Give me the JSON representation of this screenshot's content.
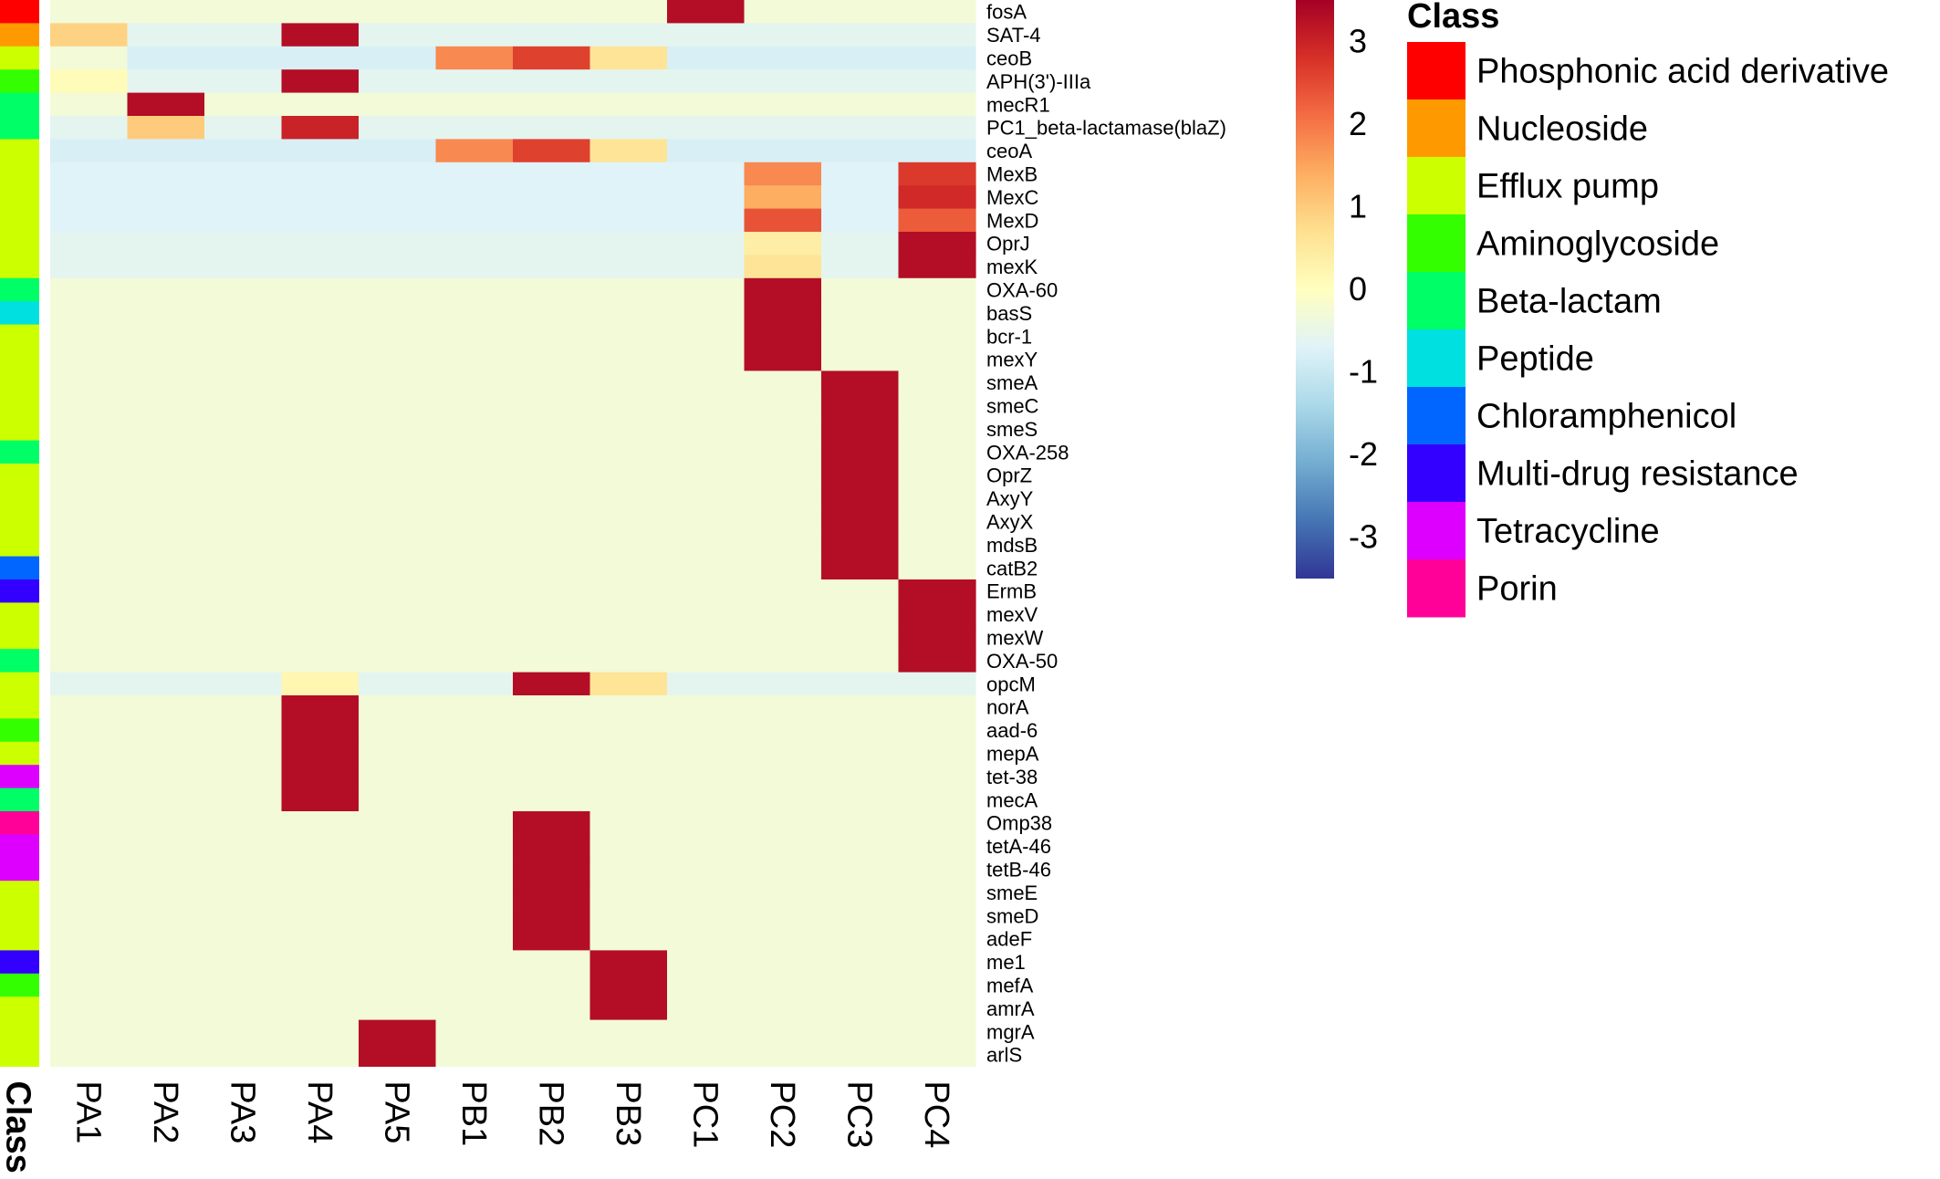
{
  "chart_data": {
    "type": "heatmap",
    "columns": [
      "PA1",
      "PA2",
      "PA3",
      "PA4",
      "PA5",
      "PB1",
      "PB2",
      "PB3",
      "PC1",
      "PC2",
      "PC3",
      "PC4"
    ],
    "annotation_label": "Class",
    "rows": [
      {
        "gene": "fosA",
        "class": "Phosphonic acid derivative",
        "values": [
          -0.3,
          -0.3,
          -0.3,
          -0.3,
          -0.3,
          -0.3,
          -0.3,
          -0.3,
          3.3,
          -0.3,
          -0.3,
          -0.3
        ]
      },
      {
        "gene": "SAT-4",
        "class": "Nucleoside",
        "values": [
          0.9,
          -0.6,
          -0.6,
          3.3,
          -0.6,
          -0.6,
          -0.6,
          -0.6,
          -0.6,
          -0.6,
          -0.6,
          -0.6
        ]
      },
      {
        "gene": "ceoB",
        "class": "Efflux pump",
        "values": [
          -0.3,
          -0.8,
          -0.8,
          -0.8,
          -0.8,
          1.8,
          2.6,
          0.6,
          -0.8,
          -0.8,
          -0.8,
          -0.8
        ]
      },
      {
        "gene": "APH(3')-IIIa",
        "class": "Aminoglycoside",
        "values": [
          0.1,
          -0.6,
          -0.6,
          3.3,
          -0.6,
          -0.6,
          -0.6,
          -0.6,
          -0.6,
          -0.6,
          -0.6,
          -0.6
        ]
      },
      {
        "gene": "mecR1",
        "class": "Beta-lactam",
        "values": [
          -0.3,
          3.3,
          -0.3,
          -0.3,
          -0.3,
          -0.3,
          -0.3,
          -0.3,
          -0.3,
          -0.3,
          -0.3,
          -0.3
        ]
      },
      {
        "gene": "PC1_beta-lactamase(blaZ)",
        "class": "Beta-lactam",
        "values": [
          -0.6,
          1.0,
          -0.6,
          3.0,
          -0.6,
          -0.6,
          -0.6,
          -0.6,
          -0.6,
          -0.6,
          -0.6,
          -0.6
        ]
      },
      {
        "gene": "ceoA",
        "class": "Efflux pump",
        "values": [
          -0.8,
          -0.8,
          -0.8,
          -0.8,
          -0.8,
          1.8,
          2.6,
          0.6,
          -0.8,
          -0.8,
          -0.8,
          -0.8
        ]
      },
      {
        "gene": "MexB",
        "class": "Efflux pump",
        "values": [
          -0.7,
          -0.7,
          -0.7,
          -0.7,
          -0.7,
          -0.7,
          -0.7,
          -0.7,
          -0.7,
          1.8,
          -0.7,
          2.7
        ]
      },
      {
        "gene": "MexC",
        "class": "Efflux pump",
        "values": [
          -0.7,
          -0.7,
          -0.7,
          -0.7,
          -0.7,
          -0.7,
          -0.7,
          -0.7,
          -0.7,
          1.4,
          -0.7,
          2.9
        ]
      },
      {
        "gene": "MexD",
        "class": "Efflux pump",
        "values": [
          -0.7,
          -0.7,
          -0.7,
          -0.7,
          -0.7,
          -0.7,
          -0.7,
          -0.7,
          -0.7,
          2.4,
          -0.7,
          2.3
        ]
      },
      {
        "gene": "OprJ",
        "class": "Efflux pump",
        "values": [
          -0.6,
          -0.6,
          -0.6,
          -0.6,
          -0.6,
          -0.6,
          -0.6,
          -0.6,
          -0.6,
          0.4,
          -0.6,
          3.3
        ]
      },
      {
        "gene": "mexK",
        "class": "Efflux pump",
        "values": [
          -0.6,
          -0.6,
          -0.6,
          -0.6,
          -0.6,
          -0.6,
          -0.6,
          -0.6,
          -0.6,
          0.6,
          -0.6,
          3.3
        ]
      },
      {
        "gene": "OXA-60",
        "class": "Beta-lactam",
        "values": [
          -0.3,
          -0.3,
          -0.3,
          -0.3,
          -0.3,
          -0.3,
          -0.3,
          -0.3,
          -0.3,
          3.3,
          -0.3,
          -0.3
        ]
      },
      {
        "gene": "basS",
        "class": "Peptide",
        "values": [
          -0.3,
          -0.3,
          -0.3,
          -0.3,
          -0.3,
          -0.3,
          -0.3,
          -0.3,
          -0.3,
          3.3,
          -0.3,
          -0.3
        ]
      },
      {
        "gene": "bcr-1",
        "class": "Efflux pump",
        "values": [
          -0.3,
          -0.3,
          -0.3,
          -0.3,
          -0.3,
          -0.3,
          -0.3,
          -0.3,
          -0.3,
          3.3,
          -0.3,
          -0.3
        ]
      },
      {
        "gene": "mexY",
        "class": "Efflux pump",
        "values": [
          -0.3,
          -0.3,
          -0.3,
          -0.3,
          -0.3,
          -0.3,
          -0.3,
          -0.3,
          -0.3,
          3.3,
          -0.3,
          -0.3
        ]
      },
      {
        "gene": "smeA",
        "class": "Efflux pump",
        "values": [
          -0.3,
          -0.3,
          -0.3,
          -0.3,
          -0.3,
          -0.3,
          -0.3,
          -0.3,
          -0.3,
          -0.3,
          3.3,
          -0.3
        ]
      },
      {
        "gene": "smeC",
        "class": "Efflux pump",
        "values": [
          -0.3,
          -0.3,
          -0.3,
          -0.3,
          -0.3,
          -0.3,
          -0.3,
          -0.3,
          -0.3,
          -0.3,
          3.3,
          -0.3
        ]
      },
      {
        "gene": "smeS",
        "class": "Efflux pump",
        "values": [
          -0.3,
          -0.3,
          -0.3,
          -0.3,
          -0.3,
          -0.3,
          -0.3,
          -0.3,
          -0.3,
          -0.3,
          3.3,
          -0.3
        ]
      },
      {
        "gene": "OXA-258",
        "class": "Beta-lactam",
        "values": [
          -0.3,
          -0.3,
          -0.3,
          -0.3,
          -0.3,
          -0.3,
          -0.3,
          -0.3,
          -0.3,
          -0.3,
          3.3,
          -0.3
        ]
      },
      {
        "gene": "OprZ",
        "class": "Efflux pump",
        "values": [
          -0.3,
          -0.3,
          -0.3,
          -0.3,
          -0.3,
          -0.3,
          -0.3,
          -0.3,
          -0.3,
          -0.3,
          3.3,
          -0.3
        ]
      },
      {
        "gene": "AxyY",
        "class": "Efflux pump",
        "values": [
          -0.3,
          -0.3,
          -0.3,
          -0.3,
          -0.3,
          -0.3,
          -0.3,
          -0.3,
          -0.3,
          -0.3,
          3.3,
          -0.3
        ]
      },
      {
        "gene": "AxyX",
        "class": "Efflux pump",
        "values": [
          -0.3,
          -0.3,
          -0.3,
          -0.3,
          -0.3,
          -0.3,
          -0.3,
          -0.3,
          -0.3,
          -0.3,
          3.3,
          -0.3
        ]
      },
      {
        "gene": "mdsB",
        "class": "Efflux pump",
        "values": [
          -0.3,
          -0.3,
          -0.3,
          -0.3,
          -0.3,
          -0.3,
          -0.3,
          -0.3,
          -0.3,
          -0.3,
          3.3,
          -0.3
        ]
      },
      {
        "gene": "catB2",
        "class": "Chloramphenicol",
        "values": [
          -0.3,
          -0.3,
          -0.3,
          -0.3,
          -0.3,
          -0.3,
          -0.3,
          -0.3,
          -0.3,
          -0.3,
          3.3,
          -0.3
        ]
      },
      {
        "gene": "ErmB",
        "class": "Multi-drug resistance",
        "values": [
          -0.3,
          -0.3,
          -0.3,
          -0.3,
          -0.3,
          -0.3,
          -0.3,
          -0.3,
          -0.3,
          -0.3,
          -0.3,
          3.3
        ]
      },
      {
        "gene": "mexV",
        "class": "Efflux pump",
        "values": [
          -0.3,
          -0.3,
          -0.3,
          -0.3,
          -0.3,
          -0.3,
          -0.3,
          -0.3,
          -0.3,
          -0.3,
          -0.3,
          3.3
        ]
      },
      {
        "gene": "mexW",
        "class": "Efflux pump",
        "values": [
          -0.3,
          -0.3,
          -0.3,
          -0.3,
          -0.3,
          -0.3,
          -0.3,
          -0.3,
          -0.3,
          -0.3,
          -0.3,
          3.3
        ]
      },
      {
        "gene": "OXA-50",
        "class": "Beta-lactam",
        "values": [
          -0.3,
          -0.3,
          -0.3,
          -0.3,
          -0.3,
          -0.3,
          -0.3,
          -0.3,
          -0.3,
          -0.3,
          -0.3,
          3.3
        ]
      },
      {
        "gene": "opcM",
        "class": "Efflux pump",
        "values": [
          -0.6,
          -0.6,
          -0.6,
          0.2,
          -0.6,
          -0.6,
          3.3,
          0.6,
          -0.6,
          -0.6,
          -0.6,
          -0.6
        ]
      },
      {
        "gene": "norA",
        "class": "Efflux pump",
        "values": [
          -0.3,
          -0.3,
          -0.3,
          3.3,
          -0.3,
          -0.3,
          -0.3,
          -0.3,
          -0.3,
          -0.3,
          -0.3,
          -0.3
        ]
      },
      {
        "gene": "aad-6",
        "class": "Aminoglycoside",
        "values": [
          -0.3,
          -0.3,
          -0.3,
          3.3,
          -0.3,
          -0.3,
          -0.3,
          -0.3,
          -0.3,
          -0.3,
          -0.3,
          -0.3
        ]
      },
      {
        "gene": "mepA",
        "class": "Efflux pump",
        "values": [
          -0.3,
          -0.3,
          -0.3,
          3.3,
          -0.3,
          -0.3,
          -0.3,
          -0.3,
          -0.3,
          -0.3,
          -0.3,
          -0.3
        ]
      },
      {
        "gene": "tet-38",
        "class": "Tetracycline",
        "values": [
          -0.3,
          -0.3,
          -0.3,
          3.3,
          -0.3,
          -0.3,
          -0.3,
          -0.3,
          -0.3,
          -0.3,
          -0.3,
          -0.3
        ]
      },
      {
        "gene": "mecA",
        "class": "Beta-lactam",
        "values": [
          -0.3,
          -0.3,
          -0.3,
          3.3,
          -0.3,
          -0.3,
          -0.3,
          -0.3,
          -0.3,
          -0.3,
          -0.3,
          -0.3
        ]
      },
      {
        "gene": "Omp38",
        "class": "Porin",
        "values": [
          -0.3,
          -0.3,
          -0.3,
          -0.3,
          -0.3,
          -0.3,
          3.3,
          -0.3,
          -0.3,
          -0.3,
          -0.3,
          -0.3
        ]
      },
      {
        "gene": "tetA-46",
        "class": "Tetracycline",
        "values": [
          -0.3,
          -0.3,
          -0.3,
          -0.3,
          -0.3,
          -0.3,
          3.3,
          -0.3,
          -0.3,
          -0.3,
          -0.3,
          -0.3
        ]
      },
      {
        "gene": "tetB-46",
        "class": "Tetracycline",
        "values": [
          -0.3,
          -0.3,
          -0.3,
          -0.3,
          -0.3,
          -0.3,
          3.3,
          -0.3,
          -0.3,
          -0.3,
          -0.3,
          -0.3
        ]
      },
      {
        "gene": "smeE",
        "class": "Efflux pump",
        "values": [
          -0.3,
          -0.3,
          -0.3,
          -0.3,
          -0.3,
          -0.3,
          3.3,
          -0.3,
          -0.3,
          -0.3,
          -0.3,
          -0.3
        ]
      },
      {
        "gene": "smeD",
        "class": "Efflux pump",
        "values": [
          -0.3,
          -0.3,
          -0.3,
          -0.3,
          -0.3,
          -0.3,
          3.3,
          -0.3,
          -0.3,
          -0.3,
          -0.3,
          -0.3
        ]
      },
      {
        "gene": "adeF",
        "class": "Efflux pump",
        "values": [
          -0.3,
          -0.3,
          -0.3,
          -0.3,
          -0.3,
          -0.3,
          3.3,
          -0.3,
          -0.3,
          -0.3,
          -0.3,
          -0.3
        ]
      },
      {
        "gene": "me1",
        "class": "Multi-drug resistance",
        "values": [
          -0.3,
          -0.3,
          -0.3,
          -0.3,
          -0.3,
          -0.3,
          -0.3,
          3.3,
          -0.3,
          -0.3,
          -0.3,
          -0.3
        ]
      },
      {
        "gene": "mefA",
        "class": "Aminoglycoside",
        "values": [
          -0.3,
          -0.3,
          -0.3,
          -0.3,
          -0.3,
          -0.3,
          -0.3,
          3.3,
          -0.3,
          -0.3,
          -0.3,
          -0.3
        ]
      },
      {
        "gene": "amrA",
        "class": "Efflux pump",
        "values": [
          -0.3,
          -0.3,
          -0.3,
          -0.3,
          -0.3,
          -0.3,
          -0.3,
          3.3,
          -0.3,
          -0.3,
          -0.3,
          -0.3
        ]
      },
      {
        "gene": "mgrA",
        "class": "Efflux pump",
        "values": [
          -0.3,
          -0.3,
          -0.3,
          -0.3,
          3.3,
          -0.3,
          -0.3,
          -0.3,
          -0.3,
          -0.3,
          -0.3,
          -0.3
        ]
      },
      {
        "gene": "arlS",
        "class": "Efflux pump",
        "values": [
          -0.3,
          -0.3,
          -0.3,
          -0.3,
          3.3,
          -0.3,
          -0.3,
          -0.3,
          -0.3,
          -0.3,
          -0.3,
          -0.3
        ]
      }
    ],
    "colorbar": {
      "range": [
        -3.5,
        3.5
      ],
      "ticks": [
        3,
        2,
        1,
        0,
        -1,
        -2,
        -3
      ],
      "colors": [
        "#313695",
        "#4575b4",
        "#74add1",
        "#abd9e9",
        "#e0f3f8",
        "#ffffbf",
        "#fee090",
        "#fdae61",
        "#f46d43",
        "#d73027",
        "#a50026"
      ]
    },
    "legend": {
      "title": "Class",
      "position": "top-right",
      "items": [
        {
          "label": "Phosphonic acid derivative",
          "color": "#FF0000"
        },
        {
          "label": "Nucleoside",
          "color": "#FF9900"
        },
        {
          "label": "Efflux pump",
          "color": "#CCFF00"
        },
        {
          "label": "Aminoglycoside",
          "color": "#33FF00"
        },
        {
          "label": "Beta-lactam",
          "color": "#00FF66"
        },
        {
          "label": "Peptide",
          "color": "#00E0E0"
        },
        {
          "label": "Chloramphenicol",
          "color": "#0066FF"
        },
        {
          "label": "Multi-drug resistance",
          "color": "#3300FF"
        },
        {
          "label": "Tetracycline",
          "color": "#DD00FF"
        },
        {
          "label": "Porin",
          "color": "#FF0099"
        }
      ]
    }
  }
}
